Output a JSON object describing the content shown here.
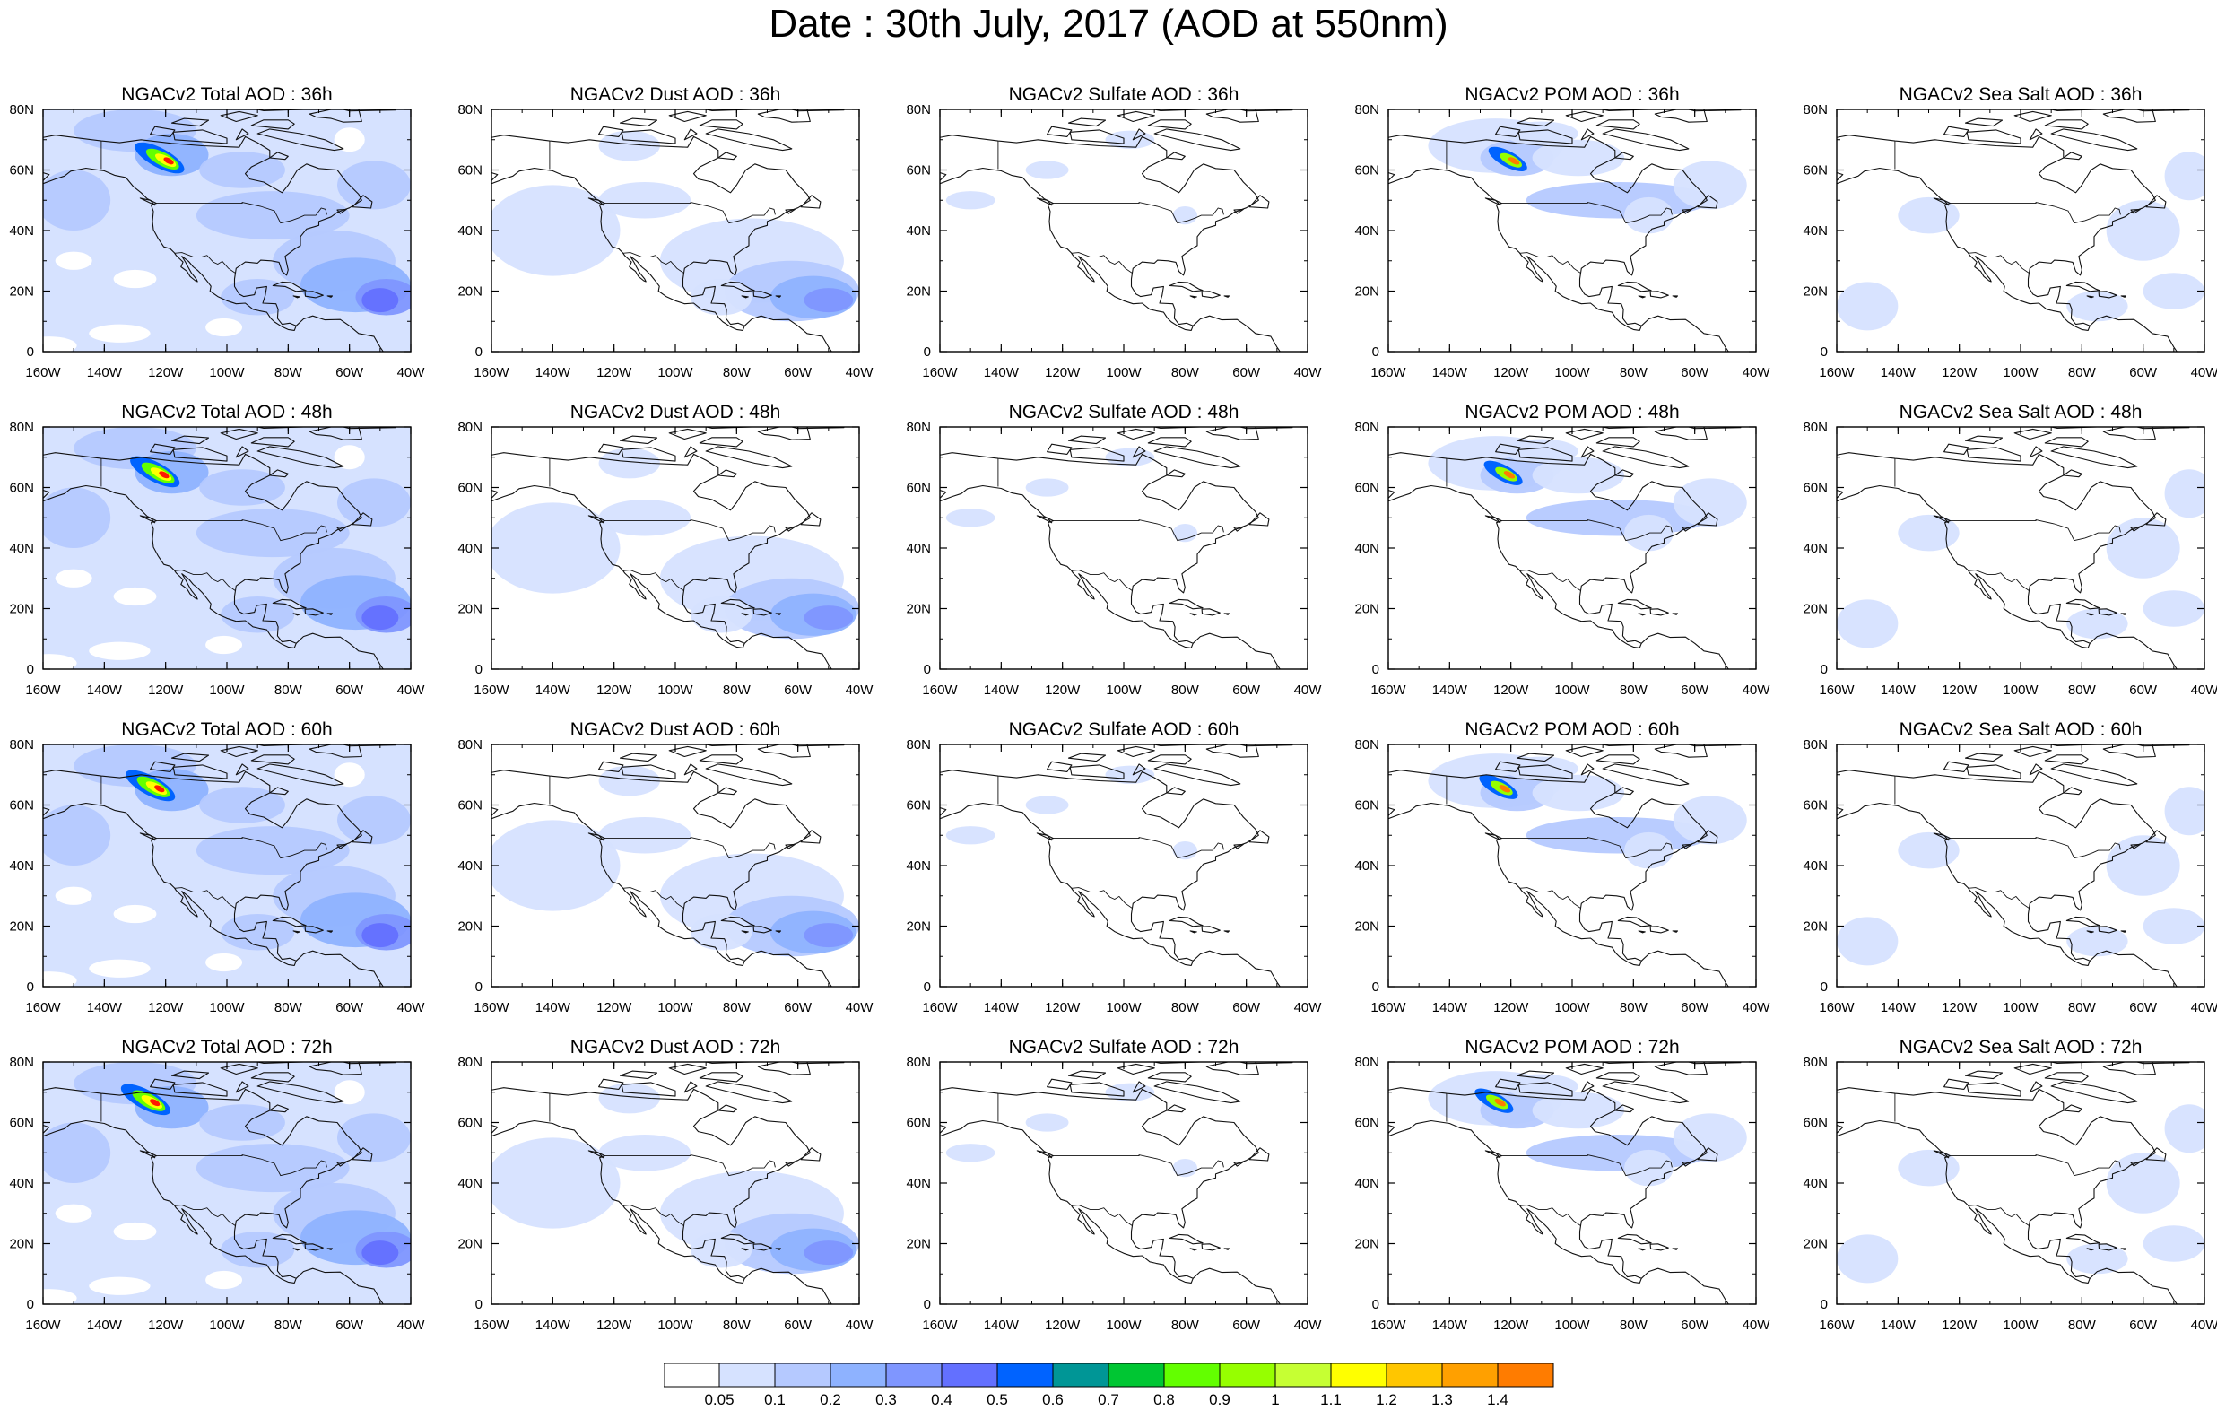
{
  "title": "Date : 30th July, 2017 (AOD at 550nm)",
  "colors": {
    "levels": [
      "#ffffff",
      "#d6e2ff",
      "#b5c9ff",
      "#8eb2ff",
      "#7f96ff",
      "#6370ff",
      "#0063ff",
      "#009696",
      "#00c633",
      "#63ff00",
      "#96ff00",
      "#c6ff33",
      "#ffff00",
      "#ffc600",
      "#ffa000",
      "#ff7c00",
      "#ff1900"
    ]
  },
  "colorbar": {
    "labels": [
      "0.05",
      "0.1",
      "0.2",
      "0.3",
      "0.4",
      "0.5",
      "0.6",
      "0.7",
      "0.8",
      "0.9",
      "1",
      "1.1",
      "1.2",
      "1.3",
      "1.4"
    ]
  },
  "axes": {
    "lon_labels": [
      "160W",
      "140W",
      "120W",
      "100W",
      "80W",
      "60W",
      "40W"
    ],
    "lat_labels": [
      "0",
      "20N",
      "40N",
      "60N",
      "80N"
    ]
  },
  "panels": [
    {
      "title": "NGACv2 Total AOD : 36h",
      "type": "total"
    },
    {
      "title": "NGACv2 Dust AOD : 36h",
      "type": "dust"
    },
    {
      "title": "NGACv2 Sulfate AOD : 36h",
      "type": "sulfate"
    },
    {
      "title": "NGACv2 POM AOD : 36h",
      "type": "pom"
    },
    {
      "title": "NGACv2 Sea Salt AOD : 36h",
      "type": "seasalt"
    },
    {
      "title": "NGACv2 Total AOD : 48h",
      "type": "total"
    },
    {
      "title": "NGACv2 Dust AOD : 48h",
      "type": "dust"
    },
    {
      "title": "NGACv2 Sulfate AOD : 48h",
      "type": "sulfate"
    },
    {
      "title": "NGACv2 POM AOD : 48h",
      "type": "pom"
    },
    {
      "title": "NGACv2 Sea Salt AOD : 48h",
      "type": "seasalt"
    },
    {
      "title": "NGACv2 Total AOD : 60h",
      "type": "total"
    },
    {
      "title": "NGACv2 Dust AOD : 60h",
      "type": "dust"
    },
    {
      "title": "NGACv2 Sulfate AOD : 60h",
      "type": "sulfate"
    },
    {
      "title": "NGACv2 POM AOD : 60h",
      "type": "pom"
    },
    {
      "title": "NGACv2 Sea Salt AOD : 60h",
      "type": "seasalt"
    },
    {
      "title": "NGACv2 Total AOD : 72h",
      "type": "total"
    },
    {
      "title": "NGACv2 Dust AOD : 72h",
      "type": "dust"
    },
    {
      "title": "NGACv2 Sulfate AOD : 72h",
      "type": "sulfate"
    },
    {
      "title": "NGACv2 POM AOD : 72h",
      "type": "pom"
    },
    {
      "title": "NGACv2 Sea Salt  AOD : 72h",
      "type": "seasalt"
    }
  ]
}
